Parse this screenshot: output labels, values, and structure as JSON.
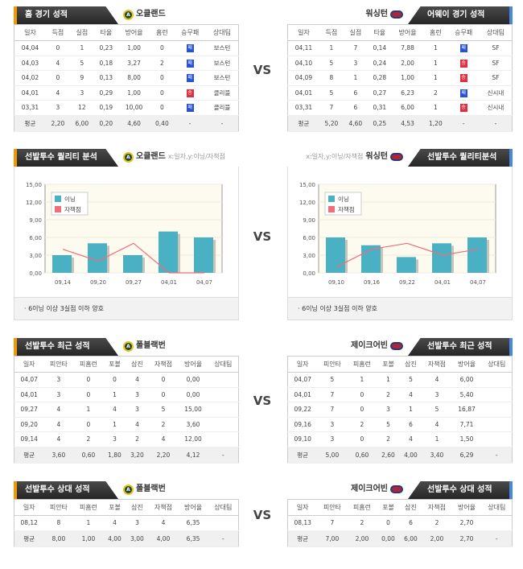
{
  "vs_label": "VS",
  "section1": {
    "left": {
      "title": "홈 경기 성적",
      "team": "오클랜드",
      "columns": [
        "일자",
        "득점",
        "실점",
        "타율",
        "방어율",
        "홈런",
        "승무패",
        "상대팀"
      ],
      "rows": [
        [
          "04,04",
          "0",
          "1",
          "0,23",
          "1,00",
          "0",
          "패",
          "보스턴"
        ],
        [
          "04,03",
          "4",
          "5",
          "0,18",
          "3,27",
          "2",
          "패",
          "보스턴"
        ],
        [
          "04,02",
          "0",
          "9",
          "0,13",
          "8,00",
          "0",
          "패",
          "보스턴"
        ],
        [
          "04,01",
          "4",
          "3",
          "0,29",
          "1,00",
          "0",
          "승",
          "클리블"
        ],
        [
          "03,31",
          "3",
          "12",
          "0,19",
          "10,00",
          "0",
          "패",
          "클리블"
        ]
      ],
      "avg": [
        "평균",
        "2,20",
        "6,00",
        "0,20",
        "4,60",
        "0,40",
        "-",
        "-"
      ]
    },
    "right": {
      "title": "어웨이 경기 성적",
      "team": "워싱턴",
      "columns": [
        "일자",
        "득점",
        "실점",
        "타율",
        "방어율",
        "홈런",
        "승무패",
        "상대팀"
      ],
      "rows": [
        [
          "04,11",
          "1",
          "7",
          "0,14",
          "7,88",
          "1",
          "패",
          "SF"
        ],
        [
          "04,10",
          "5",
          "3",
          "0,24",
          "2,00",
          "1",
          "승",
          "SF"
        ],
        [
          "04,09",
          "8",
          "1",
          "0,28",
          "1,00",
          "1",
          "승",
          "SF"
        ],
        [
          "04,01",
          "5",
          "6",
          "0,27",
          "6,23",
          "2",
          "패",
          "신시내"
        ],
        [
          "03,31",
          "7",
          "6",
          "0,31",
          "6,00",
          "1",
          "승",
          "신시내"
        ]
      ],
      "avg": [
        "평균",
        "5,20",
        "4,60",
        "0,25",
        "4,53",
        "1,20",
        "-",
        "-"
      ]
    }
  },
  "section2": {
    "left": {
      "title": "선발투수 퀄리티 분석",
      "team": "오클랜드",
      "axis_hint": "x:일자,y:이닝/자책점",
      "note": "6이닝 이상 3실점 이하 양호"
    },
    "right": {
      "title": "선발투수 퀄리티분석",
      "team": "워싱턴",
      "axis_hint": "x:일자,y:이닝/자책점",
      "note": "6이닝 이상 3실점 이하 양호"
    }
  },
  "chart_data": [
    {
      "type": "bar",
      "categories": [
        "09,14",
        "09,20",
        "09,27",
        "04,01",
        "04,07"
      ],
      "series": [
        {
          "name": "이닝",
          "kind": "bar",
          "values": [
            3,
            5,
            3,
            7,
            6
          ]
        },
        {
          "name": "자책점",
          "kind": "line",
          "values": [
            4,
            2,
            5,
            0,
            0
          ]
        }
      ],
      "ylim": [
        0,
        15
      ],
      "yticks": [
        "0,00",
        "3,00",
        "6,00",
        "9,00",
        "12,00",
        "15,00"
      ],
      "legend": "top-left"
    },
    {
      "type": "bar",
      "categories": [
        "09,10",
        "09,16",
        "09,22",
        "04,01",
        "04,07"
      ],
      "series": [
        {
          "name": "이닝",
          "kind": "bar",
          "values": [
            6,
            4.67,
            2.67,
            5,
            6
          ]
        },
        {
          "name": "자책점",
          "kind": "line",
          "values": [
            1,
            4,
            5,
            3,
            4
          ]
        }
      ],
      "ylim": [
        0,
        15
      ],
      "yticks": [
        "0,00",
        "3,00",
        "6,00",
        "9,00",
        "12,00",
        "15,00"
      ],
      "legend": "top-left"
    }
  ],
  "colors": {
    "bar": "#4ab0c4",
    "line": "#f06e7a",
    "win": "#e03040",
    "loss": "#2a52d8"
  },
  "section3": {
    "left": {
      "title": "선발투수 최근 성적",
      "team": "폴블랙번",
      "columns": [
        "일자",
        "피안타",
        "피홈런",
        "포볼",
        "삼진",
        "자책점",
        "방어율",
        "상대팀"
      ],
      "rows": [
        [
          "04,07",
          "3",
          "0",
          "0",
          "4",
          "0",
          "0,00",
          ""
        ],
        [
          "04,01",
          "3",
          "0",
          "1",
          "3",
          "0",
          "0,00",
          ""
        ],
        [
          "09,27",
          "4",
          "1",
          "4",
          "3",
          "5",
          "15,00",
          ""
        ],
        [
          "09,20",
          "4",
          "0",
          "1",
          "4",
          "2",
          "3,60",
          ""
        ],
        [
          "09,14",
          "4",
          "2",
          "3",
          "2",
          "4",
          "12,00",
          ""
        ]
      ],
      "avg": [
        "평균",
        "3,60",
        "0,60",
        "1,80",
        "3,20",
        "2,20",
        "4,12",
        "-"
      ]
    },
    "right": {
      "title": "선발투수 최근 성적",
      "team": "제이크어빈",
      "columns": [
        "일자",
        "피안타",
        "피홈런",
        "포볼",
        "삼진",
        "자책점",
        "방어율",
        "상대팀"
      ],
      "rows": [
        [
          "04,07",
          "5",
          "1",
          "1",
          "5",
          "4",
          "6,00",
          ""
        ],
        [
          "04,01",
          "7",
          "0",
          "2",
          "4",
          "3",
          "5,40",
          ""
        ],
        [
          "09,22",
          "7",
          "0",
          "3",
          "1",
          "5",
          "16,87",
          ""
        ],
        [
          "09,16",
          "3",
          "2",
          "5",
          "6",
          "4",
          "7,71",
          ""
        ],
        [
          "09,10",
          "3",
          "0",
          "2",
          "4",
          "1",
          "1,50",
          ""
        ]
      ],
      "avg": [
        "평균",
        "5,00",
        "0,60",
        "2,60",
        "4,00",
        "3,40",
        "6,29",
        "-"
      ]
    }
  },
  "section4": {
    "left": {
      "title": "선발투수 상대 성적",
      "team": "폴블랙번",
      "columns": [
        "일자",
        "피안타",
        "피홈런",
        "포볼",
        "삼진",
        "자책점",
        "방어율",
        "상대팀"
      ],
      "rows": [
        [
          "08,12",
          "8",
          "1",
          "4",
          "3",
          "4",
          "6,35",
          ""
        ]
      ],
      "avg": [
        "평균",
        "8,00",
        "1,00",
        "4,00",
        "3,00",
        "4,00",
        "6,35",
        "-"
      ]
    },
    "right": {
      "title": "선발투수 상대 성적",
      "team": "제이크어빈",
      "columns": [
        "일자",
        "피안타",
        "피홈런",
        "포볼",
        "삼진",
        "자책점",
        "방어율",
        "상대팀"
      ],
      "rows": [
        [
          "08,13",
          "7",
          "2",
          "0",
          "6",
          "2",
          "2,70",
          ""
        ]
      ],
      "avg": [
        "평균",
        "7,00",
        "2,00",
        "0,00",
        "6,00",
        "2,00",
        "2,70",
        "-"
      ]
    }
  }
}
